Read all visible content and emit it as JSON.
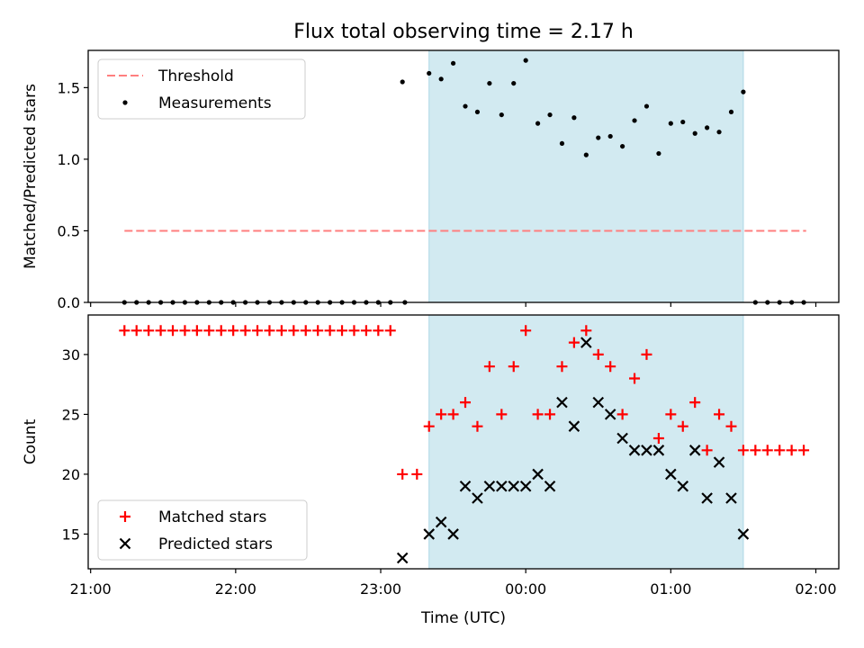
{
  "figure": {
    "title": "Flux total observing time = 2.17 h",
    "xlabel": "Time (UTC)",
    "x_ticks": [
      "21:00",
      "22:00",
      "23:00",
      "00:00",
      "01:00",
      "02:00"
    ],
    "x_tick_hours": [
      -3,
      -2,
      -1,
      0,
      1,
      2
    ],
    "x_range_hours": [
      -3.0167,
      2.1583
    ],
    "highlight_range_hours": [
      -0.6667,
      1.5
    ],
    "highlight_color": "#add8e6"
  },
  "chart_data": [
    {
      "type": "scatter",
      "ylabel": "Matched/Predicted stars",
      "ylim": [
        0,
        1.76
      ],
      "y_ticks": [
        0.0,
        0.5,
        1.0,
        1.5
      ],
      "legend": {
        "position": "top-left",
        "entries": [
          "Threshold",
          "Measurements"
        ]
      },
      "threshold": {
        "name": "Threshold",
        "value": 0.5,
        "x": [
          -2.7667,
          1.9333
        ],
        "color": "#ff7f7f"
      },
      "series": [
        {
          "name": "Measurements",
          "color": "#000000",
          "marker": "dot",
          "x": [
            -2.7667,
            -2.6833,
            -2.6,
            -2.5167,
            -2.4333,
            -2.35,
            -2.2667,
            -2.1833,
            -2.1,
            -2.0167,
            -1.9333,
            -1.85,
            -1.7667,
            -1.6833,
            -1.6,
            -1.5167,
            -1.4333,
            -1.35,
            -1.2667,
            -1.1833,
            -1.1,
            -1.0167,
            -0.9333,
            -0.85,
            -0.8333,
            -0.6667,
            -0.5833,
            -0.5,
            -0.4167,
            -0.3333,
            -0.25,
            -0.1667,
            -0.0833,
            0.0,
            0.0833,
            0.1667,
            0.25,
            0.3333,
            0.4167,
            0.5,
            0.5833,
            0.6667,
            0.75,
            0.8333,
            0.9167,
            1.0,
            1.0833,
            1.1667,
            1.25,
            1.3333,
            1.4167,
            1.5,
            1.5833,
            1.6667,
            1.75,
            1.8333,
            1.9167
          ],
          "y": [
            0,
            0,
            0,
            0,
            0,
            0,
            0,
            0,
            0,
            0,
            0,
            0,
            0,
            0,
            0,
            0,
            0,
            0,
            0,
            0,
            0,
            0,
            0,
            1.54,
            0,
            1.6,
            1.56,
            1.67,
            1.37,
            1.33,
            1.53,
            1.31,
            1.53,
            1.69,
            1.25,
            1.31,
            1.11,
            1.29,
            1.03,
            1.15,
            1.16,
            1.09,
            1.27,
            1.37,
            1.04,
            1.25,
            1.26,
            1.18,
            1.22,
            1.19,
            1.33,
            1.47,
            0,
            0,
            0,
            0,
            0
          ]
        }
      ]
    },
    {
      "type": "scatter",
      "ylabel": "Count",
      "ylim": [
        12.1,
        33.3
      ],
      "y_ticks": [
        15,
        20,
        25,
        30
      ],
      "legend": {
        "position": "bottom-left",
        "entries": [
          "Matched stars",
          "Predicted stars"
        ]
      },
      "series": [
        {
          "name": "Matched stars",
          "color": "#ff0000",
          "marker": "plus",
          "x": [
            -2.7667,
            -2.6833,
            -2.6,
            -2.5167,
            -2.4333,
            -2.35,
            -2.2667,
            -2.1833,
            -2.1,
            -2.0167,
            -1.9333,
            -1.85,
            -1.7667,
            -1.6833,
            -1.6,
            -1.5167,
            -1.4333,
            -1.35,
            -1.2667,
            -1.1833,
            -1.1,
            -1.0167,
            -0.9333,
            -0.85,
            -0.75,
            -0.6667,
            -0.5833,
            -0.5,
            -0.4167,
            -0.3333,
            -0.25,
            -0.1667,
            -0.0833,
            0.0,
            0.0833,
            0.1667,
            0.25,
            0.3333,
            0.4167,
            0.5,
            0.5833,
            0.6667,
            0.75,
            0.8333,
            0.9167,
            1.0,
            1.0833,
            1.1667,
            1.25,
            1.3333,
            1.4167,
            1.5,
            1.5833,
            1.6667,
            1.75,
            1.8333,
            1.9167
          ],
          "y": [
            32,
            32,
            32,
            32,
            32,
            32,
            32,
            32,
            32,
            32,
            32,
            32,
            32,
            32,
            32,
            32,
            32,
            32,
            32,
            32,
            32,
            32,
            32,
            20,
            20,
            24,
            25,
            25,
            26,
            24,
            29,
            25,
            29,
            32,
            25,
            25,
            29,
            31,
            32,
            30,
            29,
            25,
            28,
            30,
            23,
            25,
            24,
            26,
            22,
            25,
            24,
            22,
            22,
            22,
            22,
            22,
            22
          ]
        },
        {
          "name": "Predicted stars",
          "color": "#000000",
          "marker": "x",
          "x": [
            -0.85,
            -0.6667,
            -0.5833,
            -0.5,
            -0.4167,
            -0.3333,
            -0.25,
            -0.1667,
            -0.0833,
            0.0,
            0.0833,
            0.1667,
            0.25,
            0.3333,
            0.4167,
            0.5,
            0.5833,
            0.6667,
            0.75,
            0.8333,
            0.9167,
            1.0,
            1.0833,
            1.1667,
            1.25,
            1.3333,
            1.4167,
            1.5
          ],
          "y": [
            13,
            15,
            16,
            15,
            19,
            18,
            19,
            19,
            19,
            19,
            20,
            19,
            26,
            24,
            31,
            26,
            25,
            23,
            22,
            22,
            22,
            20,
            19,
            22,
            18,
            21,
            18,
            15
          ]
        }
      ]
    }
  ]
}
